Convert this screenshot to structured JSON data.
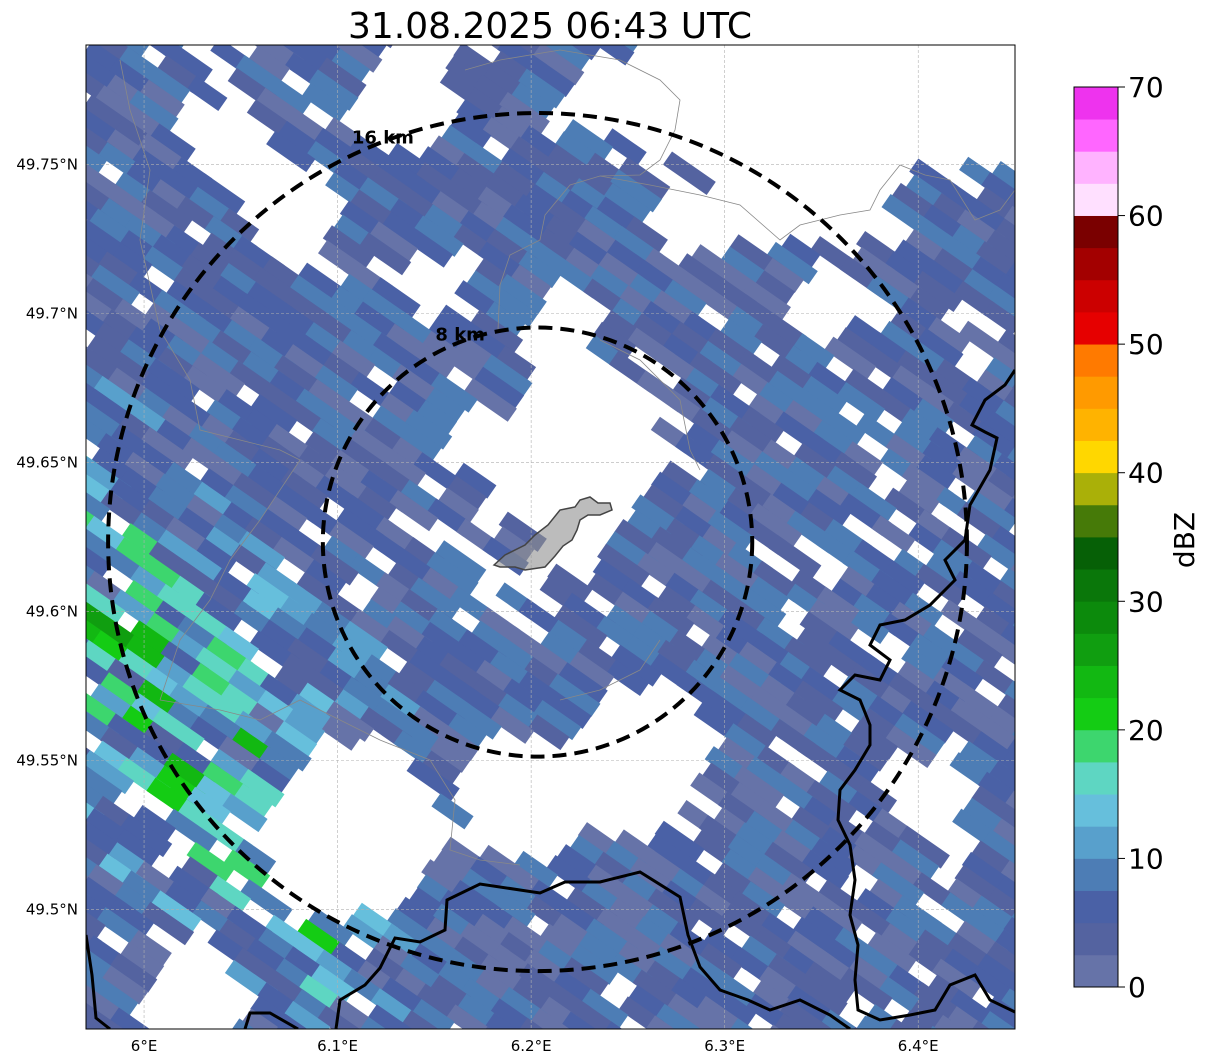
{
  "title": "31.08.2025 06:43 UTC",
  "map": {
    "lon_range": [
      5.97,
      6.45
    ],
    "lat_range": [
      49.46,
      49.79
    ],
    "center": {
      "lon": 6.2033,
      "lat": 49.6233
    },
    "x_ticks": [
      {
        "value": 6.0,
        "label": "6°E"
      },
      {
        "value": 6.1,
        "label": "6.1°E"
      },
      {
        "value": 6.2,
        "label": "6.2°E"
      },
      {
        "value": 6.3,
        "label": "6.3°E"
      },
      {
        "value": 6.4,
        "label": "6.4°E"
      }
    ],
    "y_ticks": [
      {
        "value": 49.75,
        "label": "49.75°N"
      },
      {
        "value": 49.7,
        "label": "49.7°N"
      },
      {
        "value": 49.65,
        "label": "49.65°N"
      },
      {
        "value": 49.6,
        "label": "49.6°N"
      },
      {
        "value": 49.55,
        "label": "49.55°N"
      },
      {
        "value": 49.5,
        "label": "49.5°N"
      }
    ],
    "range_rings": [
      {
        "radius_km": 8,
        "label": "8 km"
      },
      {
        "radius_km": 16,
        "label": "16 km"
      }
    ]
  },
  "colorbar": {
    "label": "dBZ",
    "min": 0,
    "max": 70,
    "ticks": [
      {
        "value": 0,
        "label": "0"
      },
      {
        "value": 10,
        "label": "10"
      },
      {
        "value": 20,
        "label": "20"
      },
      {
        "value": 30,
        "label": "30"
      },
      {
        "value": 40,
        "label": "40"
      },
      {
        "value": 50,
        "label": "50"
      },
      {
        "value": 60,
        "label": "60"
      },
      {
        "value": 70,
        "label": "70"
      }
    ],
    "colors": [
      "#6673a8",
      "#5463a0",
      "#4a61a6",
      "#4d7db5",
      "#58a0cc",
      "#66bfdc",
      "#5ed6c2",
      "#3dd66e",
      "#14cc14",
      "#12b812",
      "#109e10",
      "#0c8a0c",
      "#0a770a",
      "#066006",
      "#467a08",
      "#aab008",
      "#ffd700",
      "#ffb300",
      "#ff9a00",
      "#ff7a00",
      "#e60000",
      "#cc0000",
      "#a30000",
      "#7a0000",
      "#ffe0ff",
      "#ffb3ff",
      "#ff66ff",
      "#ee33ee"
    ]
  }
}
